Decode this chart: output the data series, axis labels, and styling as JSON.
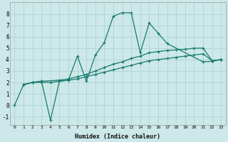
{
  "bg_color": "#cce8e8",
  "line_color": "#1a7a6e",
  "grid_color": "#aad0d0",
  "xlabel": "Humidex (Indice chaleur)",
  "xlim": [
    -0.5,
    23.5
  ],
  "ylim": [
    -1.7,
    9.0
  ],
  "yticks": [
    -1,
    0,
    1,
    2,
    3,
    4,
    5,
    6,
    7,
    8
  ],
  "xticks": [
    0,
    1,
    2,
    3,
    4,
    5,
    6,
    7,
    8,
    9,
    10,
    11,
    12,
    13,
    14,
    15,
    16,
    17,
    18,
    19,
    20,
    21,
    22,
    23
  ],
  "curves": [
    {
      "x": [
        0,
        1,
        2,
        3,
        4,
        5,
        6,
        7,
        8,
        9,
        10,
        11,
        12,
        13,
        14,
        15,
        16,
        17,
        18,
        19,
        20,
        21,
        22,
        23
      ],
      "y": [
        0.0,
        1.8,
        2.0,
        2.0,
        2.0,
        2.1,
        2.2,
        2.3,
        2.5,
        2.7,
        2.9,
        3.1,
        3.3,
        3.5,
        3.7,
        3.9,
        4.0,
        4.1,
        4.2,
        4.3,
        4.4,
        4.5,
        3.9,
        4.0
      ]
    },
    {
      "x": [
        1,
        2,
        3,
        5,
        6,
        7,
        8,
        9,
        10,
        11,
        12,
        13,
        14,
        15,
        16,
        17,
        18,
        19,
        20,
        21,
        22,
        23
      ],
      "y": [
        1.8,
        2.0,
        2.1,
        2.2,
        2.3,
        2.5,
        2.7,
        3.0,
        3.3,
        3.6,
        3.8,
        4.1,
        4.3,
        4.6,
        4.7,
        4.8,
        4.85,
        4.9,
        5.0,
        5.0,
        3.9,
        4.0
      ]
    },
    {
      "x": [
        1,
        2,
        3,
        4,
        5,
        6,
        7,
        8,
        9,
        10,
        11,
        12,
        13,
        14,
        15,
        16,
        17,
        21,
        22,
        23
      ],
      "y": [
        1.8,
        2.0,
        2.1,
        -1.3,
        2.1,
        2.2,
        4.3,
        2.1,
        4.4,
        5.5,
        7.8,
        8.1,
        8.1,
        4.6,
        7.2,
        6.3,
        5.4,
        3.8,
        3.85,
        4.0
      ]
    }
  ]
}
